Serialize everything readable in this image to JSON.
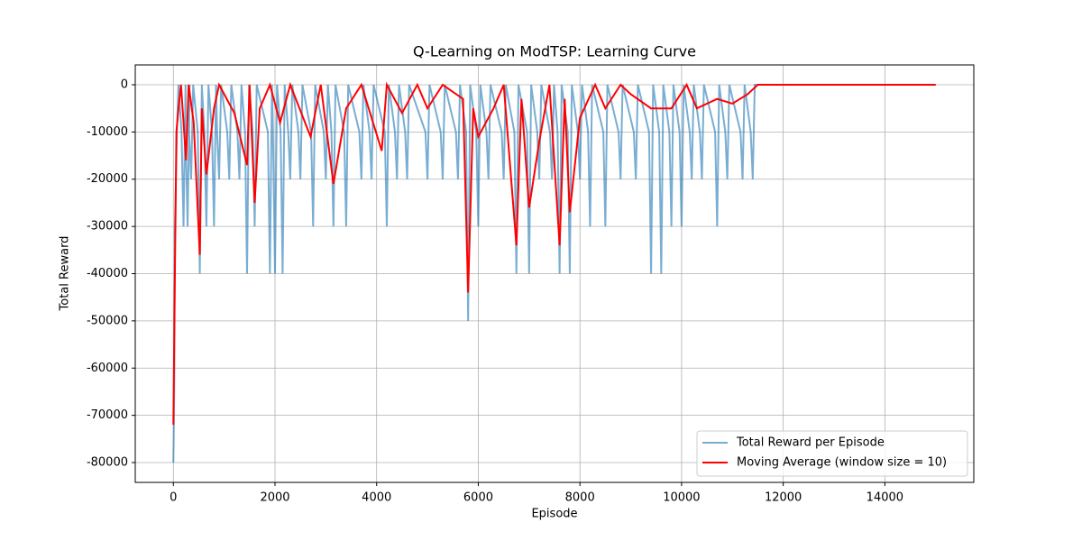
{
  "chart_data": {
    "type": "line",
    "title": "Q-Learning on ModTSP: Learning Curve",
    "x_label": "Episode",
    "y_label": "Total Reward",
    "xlim": [
      -750,
      15750
    ],
    "ylim": [
      -84200,
      4200
    ],
    "xticks": [
      0,
      2000,
      4000,
      6000,
      8000,
      10000,
      12000,
      14000
    ],
    "yticks": [
      0,
      -10000,
      -20000,
      -30000,
      -40000,
      -50000,
      -60000,
      -70000,
      -80000
    ],
    "grid": true,
    "legend": "lower right",
    "series": [
      {
        "name": "Total Reward per Episode",
        "color": "#1f77b4",
        "opacity": 0.6,
        "width": 2,
        "x": [
          0,
          10,
          20,
          30,
          50,
          70,
          100,
          160,
          200,
          240,
          240,
          280,
          320,
          310,
          350,
          390,
          480,
          520,
          560,
          610,
          650,
          690,
          760,
          800,
          840,
          860,
          900,
          940,
          1060,
          1100,
          1140,
          1260,
          1300,
          1340,
          1410,
          1450,
          1490,
          1560,
          1600,
          1640,
          1860,
          1900,
          1940,
          1960,
          2000,
          2040,
          2110,
          2150,
          2190,
          2260,
          2300,
          2340,
          2460,
          2500,
          2540,
          2710,
          2750,
          2790,
          2960,
          3000,
          3040,
          3110,
          3150,
          3190,
          3360,
          3400,
          3440,
          3660,
          3700,
          3740,
          3860,
          3900,
          3940,
          4160,
          4200,
          4240,
          4360,
          4400,
          4440,
          4560,
          4600,
          4640,
          4960,
          5000,
          5040,
          5260,
          5300,
          5340,
          5560,
          5600,
          5640,
          5760,
          5800,
          5840,
          5960,
          6000,
          6040,
          6160,
          6200,
          6240,
          6460,
          6500,
          6540,
          6710,
          6750,
          6790,
          6960,
          7000,
          7040,
          7160,
          7200,
          7240,
          7410,
          7450,
          7490,
          7560,
          7600,
          7640,
          7760,
          7800,
          7840,
          7960,
          8000,
          8040,
          8160,
          8200,
          8240,
          8460,
          8500,
          8540,
          8760,
          8800,
          8840,
          9060,
          9100,
          9140,
          9360,
          9400,
          9440,
          9560,
          9600,
          9640,
          9760,
          9800,
          9840,
          9960,
          10000,
          10040,
          10160,
          10200,
          10240,
          10360,
          10400,
          10440,
          10660,
          10700,
          10740,
          10860,
          10900,
          10940,
          11160,
          11200,
          11240,
          11360,
          11400,
          11440,
          15000
        ],
        "values": [
          -80000,
          -72000,
          -60000,
          -30000,
          -20000,
          -10000,
          0,
          -10000,
          -30000,
          0,
          -10000,
          -30000,
          0,
          -10000,
          -20000,
          0,
          -10000,
          -40000,
          0,
          -10000,
          -30000,
          0,
          -10000,
          -30000,
          0,
          -10000,
          -20000,
          0,
          -10000,
          -20000,
          0,
          -10000,
          -20000,
          0,
          -10000,
          -40000,
          0,
          -10000,
          -30000,
          0,
          -10000,
          -40000,
          0,
          -10000,
          -40000,
          0,
          -10000,
          -40000,
          0,
          -10000,
          -20000,
          0,
          -10000,
          -20000,
          0,
          -10000,
          -30000,
          0,
          -10000,
          -20000,
          0,
          -10000,
          -30000,
          0,
          -10000,
          -30000,
          0,
          -10000,
          -20000,
          0,
          -10000,
          -20000,
          0,
          -10000,
          -30000,
          0,
          -10000,
          -20000,
          0,
          -10000,
          -20000,
          0,
          -10000,
          -20000,
          0,
          -10000,
          -20000,
          0,
          -10000,
          -20000,
          0,
          -10000,
          -50000,
          0,
          -10000,
          -30000,
          0,
          -10000,
          -20000,
          0,
          -10000,
          -20000,
          0,
          -10000,
          -40000,
          0,
          -10000,
          -40000,
          0,
          -10000,
          -20000,
          0,
          -10000,
          -20000,
          0,
          -10000,
          -40000,
          0,
          -10000,
          -40000,
          0,
          -10000,
          -20000,
          0,
          -10000,
          -30000,
          0,
          -10000,
          -30000,
          0,
          -10000,
          -20000,
          0,
          -10000,
          -20000,
          0,
          -10000,
          -40000,
          0,
          -10000,
          -40000,
          0,
          -10000,
          -30000,
          0,
          -10000,
          -30000,
          0,
          -10000,
          -20000,
          0,
          -10000,
          -20000,
          0,
          -10000,
          -30000,
          0,
          -10000,
          -20000,
          0,
          -10000,
          -20000,
          0,
          -10000,
          -20000,
          0,
          0
        ]
      },
      {
        "name": "Moving Average (window size = 10)",
        "color": "#ff0000",
        "opacity": 1,
        "width": 2,
        "x": [
          0,
          30,
          60,
          100,
          150,
          250,
          300,
          400,
          520,
          560,
          650,
          800,
          900,
          1000,
          1200,
          1450,
          1500,
          1600,
          1700,
          1900,
          2100,
          2300,
          2700,
          2900,
          3150,
          3400,
          3700,
          4100,
          4200,
          4500,
          4800,
          5000,
          5300,
          5700,
          5800,
          5900,
          6000,
          6300,
          6500,
          6750,
          6850,
          7000,
          7200,
          7400,
          7600,
          7700,
          7800,
          8000,
          8300,
          8500,
          8800,
          9000,
          9400,
          9800,
          10100,
          10300,
          10700,
          11000,
          11300,
          11500,
          15000
        ],
        "values": [
          -72000,
          -40000,
          -10000,
          -5000,
          0,
          -16000,
          0,
          -8000,
          -36000,
          -5000,
          -19000,
          -5000,
          0,
          -2000,
          -6000,
          -17000,
          0,
          -25000,
          -5000,
          0,
          -8000,
          0,
          -11000,
          0,
          -21000,
          -5000,
          0,
          -14000,
          0,
          -6000,
          0,
          -5000,
          0,
          -3000,
          -44000,
          -5000,
          -11000,
          -5000,
          0,
          -34000,
          -3000,
          -26000,
          -12000,
          0,
          -34000,
          -3000,
          -27000,
          -7000,
          0,
          -5000,
          0,
          -2000,
          -5000,
          -5000,
          0,
          -5000,
          -3000,
          -4000,
          -2000,
          0,
          0
        ]
      }
    ]
  }
}
